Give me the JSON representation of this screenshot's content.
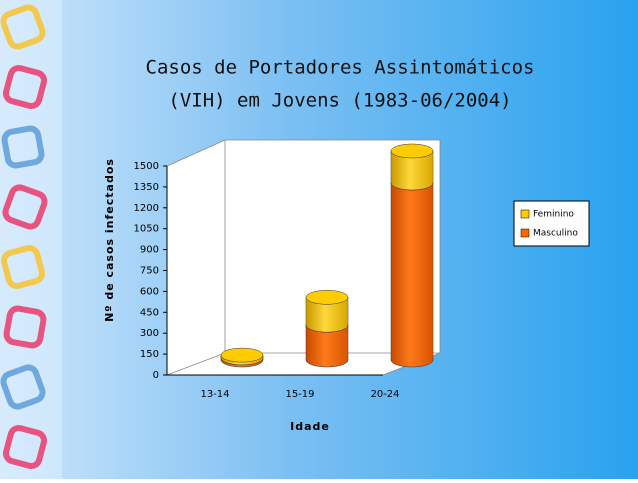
{
  "chart_data": {
    "type": "bar",
    "stacked": true,
    "title": "Casos de Portadores Assintomáticos",
    "subtitle": "(VIH) em Jovens (1983-06/2004)",
    "y_label": "Nº de casos infectados",
    "x_label": "Idade",
    "categories": [
      "13-14",
      "15-19",
      "20-24"
    ],
    "series": [
      {
        "name": "Masculino",
        "color": "#ff6600",
        "values": [
          15,
          250,
          1270
        ]
      },
      {
        "name": "Feminino",
        "color": "#ffcc00",
        "values": [
          20,
          200,
          230
        ]
      }
    ],
    "ylim": [
      0,
      1500
    ],
    "yticks": [
      0,
      150,
      300,
      450,
      600,
      750,
      900,
      1050,
      1200,
      1350,
      1500
    ],
    "grid": false,
    "legend": "right"
  }
}
